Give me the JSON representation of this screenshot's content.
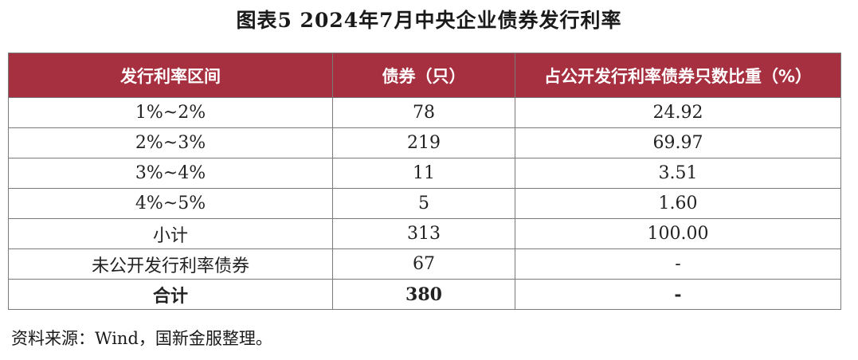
{
  "title": "图表5  2024年7月中央企业债券发行利率",
  "table": {
    "headers": [
      "发行利率区间",
      "债券（只）",
      "占公开发行利率债券只数比重（%）"
    ],
    "rows": [
      [
        "1%~2%",
        "78",
        "24.92"
      ],
      [
        "2%~3%",
        "219",
        "69.97"
      ],
      [
        "3%~4%",
        "11",
        "3.51"
      ],
      [
        "4%~5%",
        "5",
        "1.60"
      ],
      [
        "小计",
        "313",
        "100.00"
      ],
      [
        "未公开发行利率债券",
        "67",
        "-"
      ]
    ],
    "total": [
      "合计",
      "380",
      "-"
    ]
  },
  "source": "资料来源：Wind，国新金服整理。",
  "colors": {
    "header_bg": "#a6303f",
    "header_text": "#ffffff",
    "border": "#7a7a7a"
  }
}
